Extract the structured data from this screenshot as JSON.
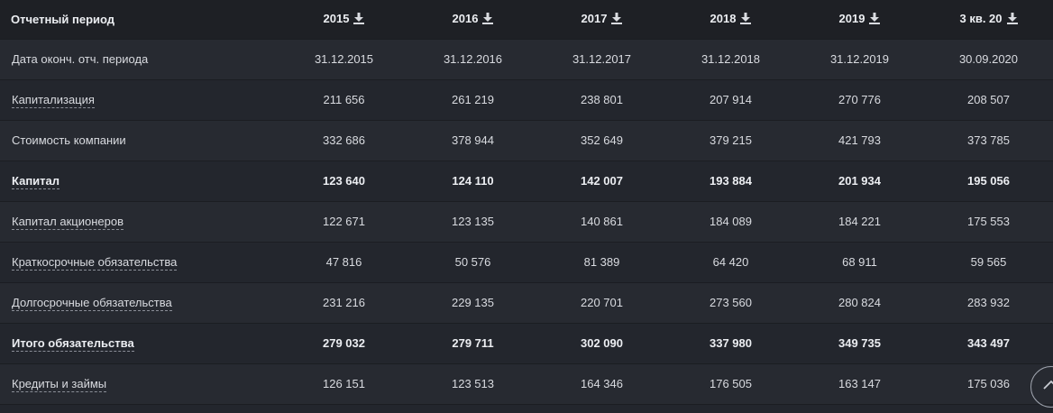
{
  "table": {
    "header": {
      "label": "Отчетный период",
      "columns": [
        "2015",
        "2016",
        "2017",
        "2018",
        "2019",
        "3 кв. 20"
      ],
      "icon": "download-icon"
    },
    "rows": [
      {
        "label": "Дата оконч. отч. периода",
        "link": false,
        "bold": false,
        "values": [
          "31.12.2015",
          "31.12.2016",
          "31.12.2017",
          "31.12.2018",
          "31.12.2019",
          "30.09.2020"
        ]
      },
      {
        "label": "Капитализация",
        "link": true,
        "bold": false,
        "values": [
          "211 656",
          "261 219",
          "238 801",
          "207 914",
          "270 776",
          "208 507"
        ]
      },
      {
        "label": "Стоимость компании",
        "link": false,
        "bold": false,
        "values": [
          "332 686",
          "378 944",
          "352 649",
          "379 215",
          "421 793",
          "373 785"
        ]
      },
      {
        "label": "Капитал",
        "link": true,
        "bold": true,
        "values": [
          "123 640",
          "124 110",
          "142 007",
          "193 884",
          "201 934",
          "195 056"
        ]
      },
      {
        "label": "Капитал акционеров",
        "link": true,
        "bold": false,
        "values": [
          "122 671",
          "123 135",
          "140 861",
          "184 089",
          "184 221",
          "175 553"
        ]
      },
      {
        "label": "Краткосрочные обязательства",
        "link": true,
        "bold": false,
        "values": [
          "47 816",
          "50 576",
          "81 389",
          "64 420",
          "68 911",
          "59 565"
        ]
      },
      {
        "label": "Долгосрочные обязательства",
        "link": true,
        "bold": false,
        "values": [
          "231 216",
          "229 135",
          "220 701",
          "273 560",
          "280 824",
          "283 932"
        ]
      },
      {
        "label": "Итого обязательства",
        "link": true,
        "bold": true,
        "values": [
          "279 032",
          "279 711",
          "302 090",
          "337 980",
          "349 735",
          "343 497"
        ]
      },
      {
        "label": "Кредиты и займы",
        "link": true,
        "bold": false,
        "values": [
          "126 151",
          "123 513",
          "164 346",
          "176 505",
          "163 147",
          "175 036"
        ]
      }
    ]
  },
  "scroll_button": {
    "icon": "chevron-up-icon"
  }
}
